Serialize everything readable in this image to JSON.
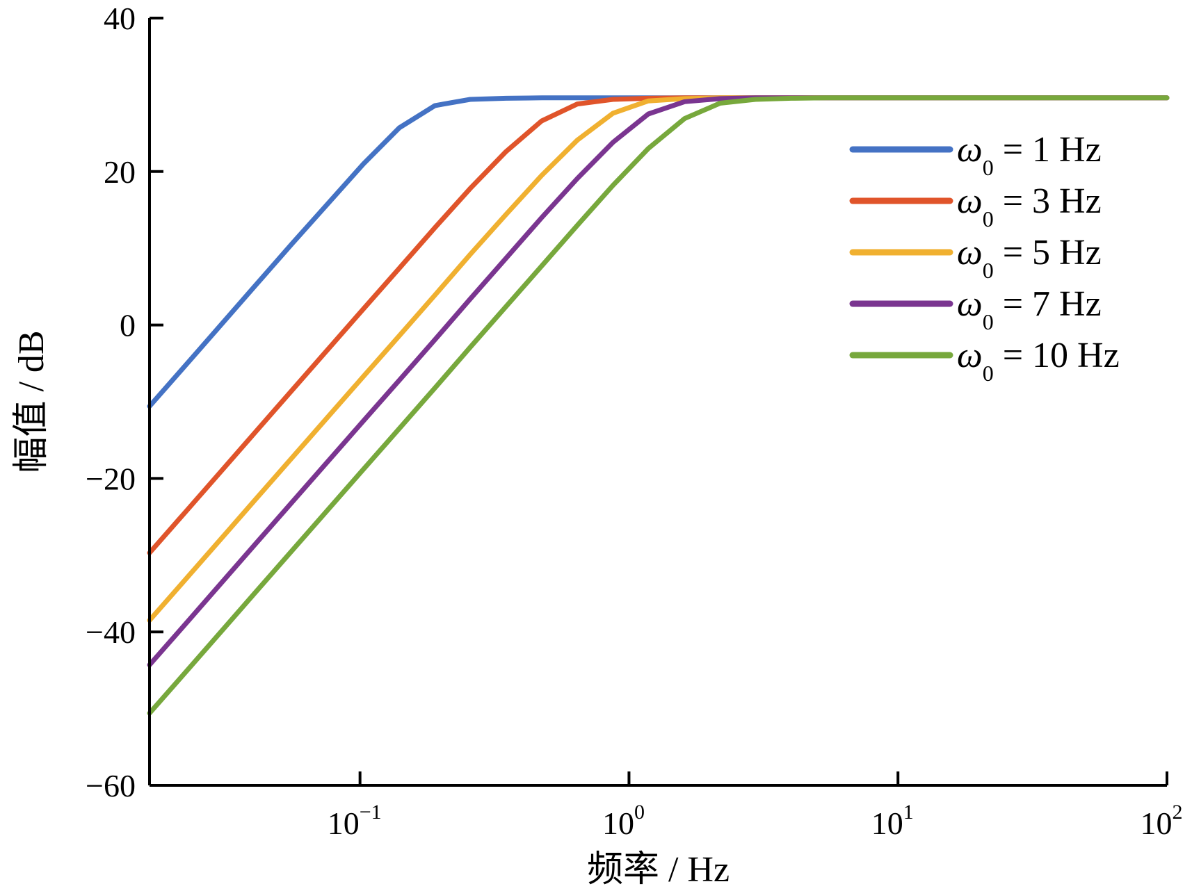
{
  "chart_data": {
    "type": "line",
    "xlabel": "频率 / Hz",
    "ylabel": "幅值 / dB",
    "xscale": "log",
    "xlim": [
      0.0165,
      100
    ],
    "ylim": [
      -60,
      40
    ],
    "yticks": [
      {
        "value": 40,
        "label": "40"
      },
      {
        "value": 20,
        "label": "20"
      },
      {
        "value": 0,
        "label": "0"
      },
      {
        "value": -20,
        "label": "−20"
      },
      {
        "value": -40,
        "label": "−40"
      },
      {
        "value": -60,
        "label": "−60"
      }
    ],
    "xticks": [
      {
        "value": 0.1,
        "base": "10",
        "exp": "−1"
      },
      {
        "value": 1,
        "base": "10",
        "exp": "0"
      },
      {
        "value": 10,
        "base": "10",
        "exp": "1"
      },
      {
        "value": 100,
        "base": "10",
        "exp": "2"
      }
    ],
    "grid": false,
    "legend_position": "top-right",
    "series": [
      {
        "name": "ω0 = 1 Hz",
        "symbol": "ω",
        "subscript": "0",
        "rest": " = 1 Hz",
        "color": "#4472c4",
        "x": [
          0.0165,
          0.0224,
          0.0304,
          0.0412,
          0.0559,
          0.0759,
          0.103,
          0.14,
          0.19,
          0.257,
          0.349,
          0.474,
          0.643,
          0.872,
          1.18,
          1.61,
          2.18,
          2.95,
          4.01,
          5.44,
          7.38,
          10,
          100
        ],
        "y": [
          -10.6,
          -5.3,
          0,
          5.3,
          10.6,
          15.8,
          21,
          25.7,
          28.6,
          29.4,
          29.55,
          29.6,
          29.6,
          29.6,
          29.6,
          29.6,
          29.6,
          29.6,
          29.6,
          29.6,
          29.6,
          29.6,
          29.6
        ]
      },
      {
        "name": "ω0 = 3 Hz",
        "symbol": "ω",
        "subscript": "0",
        "rest": " = 3 Hz",
        "color": "#e0542a",
        "x": [
          0.0165,
          0.0224,
          0.0304,
          0.0412,
          0.0559,
          0.0759,
          0.103,
          0.14,
          0.19,
          0.257,
          0.349,
          0.474,
          0.643,
          0.872,
          1.18,
          1.61,
          2.18,
          2.95,
          4.01,
          5.44,
          7.38,
          10,
          100
        ],
        "y": [
          -29.7,
          -24.4,
          -19.1,
          -13.8,
          -8.5,
          -3.2,
          2.1,
          7.4,
          12.7,
          17.8,
          22.6,
          26.6,
          28.8,
          29.4,
          29.55,
          29.6,
          29.6,
          29.6,
          29.6,
          29.6,
          29.6,
          29.6,
          29.6
        ]
      },
      {
        "name": "ω0 = 5 Hz",
        "symbol": "ω",
        "subscript": "0",
        "rest": " = 5 Hz",
        "color": "#f0b030",
        "x": [
          0.0165,
          0.0224,
          0.0304,
          0.0412,
          0.0559,
          0.0759,
          0.103,
          0.14,
          0.19,
          0.257,
          0.349,
          0.474,
          0.643,
          0.872,
          1.18,
          1.61,
          2.18,
          2.95,
          4.01,
          5.44,
          7.38,
          10,
          100
        ],
        "y": [
          -38.5,
          -33.2,
          -27.9,
          -22.6,
          -17.3,
          -12,
          -6.7,
          -1.4,
          3.9,
          9.2,
          14.4,
          19.5,
          24.1,
          27.6,
          29.2,
          29.5,
          29.6,
          29.6,
          29.6,
          29.6,
          29.6,
          29.6,
          29.6
        ]
      },
      {
        "name": "ω0 = 7 Hz",
        "symbol": "ω",
        "subscript": "0",
        "rest": " = 7 Hz",
        "color": "#7a3590",
        "x": [
          0.0165,
          0.0224,
          0.0304,
          0.0412,
          0.0559,
          0.0759,
          0.103,
          0.14,
          0.19,
          0.257,
          0.349,
          0.474,
          0.643,
          0.872,
          1.18,
          1.61,
          2.18,
          2.95,
          4.01,
          5.44,
          7.38,
          10,
          100
        ],
        "y": [
          -44.3,
          -39,
          -33.7,
          -28.4,
          -23.1,
          -17.8,
          -12.5,
          -7.2,
          -1.9,
          3.4,
          8.7,
          14,
          19.1,
          23.8,
          27.5,
          29.1,
          29.5,
          29.6,
          29.6,
          29.6,
          29.6,
          29.6,
          29.6
        ]
      },
      {
        "name": "ω0 = 10 Hz",
        "symbol": "ω",
        "subscript": "0",
        "rest": " = 10 Hz",
        "color": "#77a83c",
        "x": [
          0.0165,
          0.0224,
          0.0304,
          0.0412,
          0.0559,
          0.0759,
          0.103,
          0.14,
          0.19,
          0.257,
          0.349,
          0.474,
          0.643,
          0.872,
          1.18,
          1.61,
          2.18,
          2.95,
          4.01,
          5.44,
          7.38,
          10,
          100
        ],
        "y": [
          -50.6,
          -45.3,
          -40,
          -34.7,
          -29.4,
          -24.1,
          -18.8,
          -13.5,
          -8.2,
          -2.9,
          2.4,
          7.7,
          13,
          18.2,
          23,
          26.9,
          28.9,
          29.4,
          29.55,
          29.6,
          29.6,
          29.6,
          29.6
        ]
      }
    ]
  }
}
